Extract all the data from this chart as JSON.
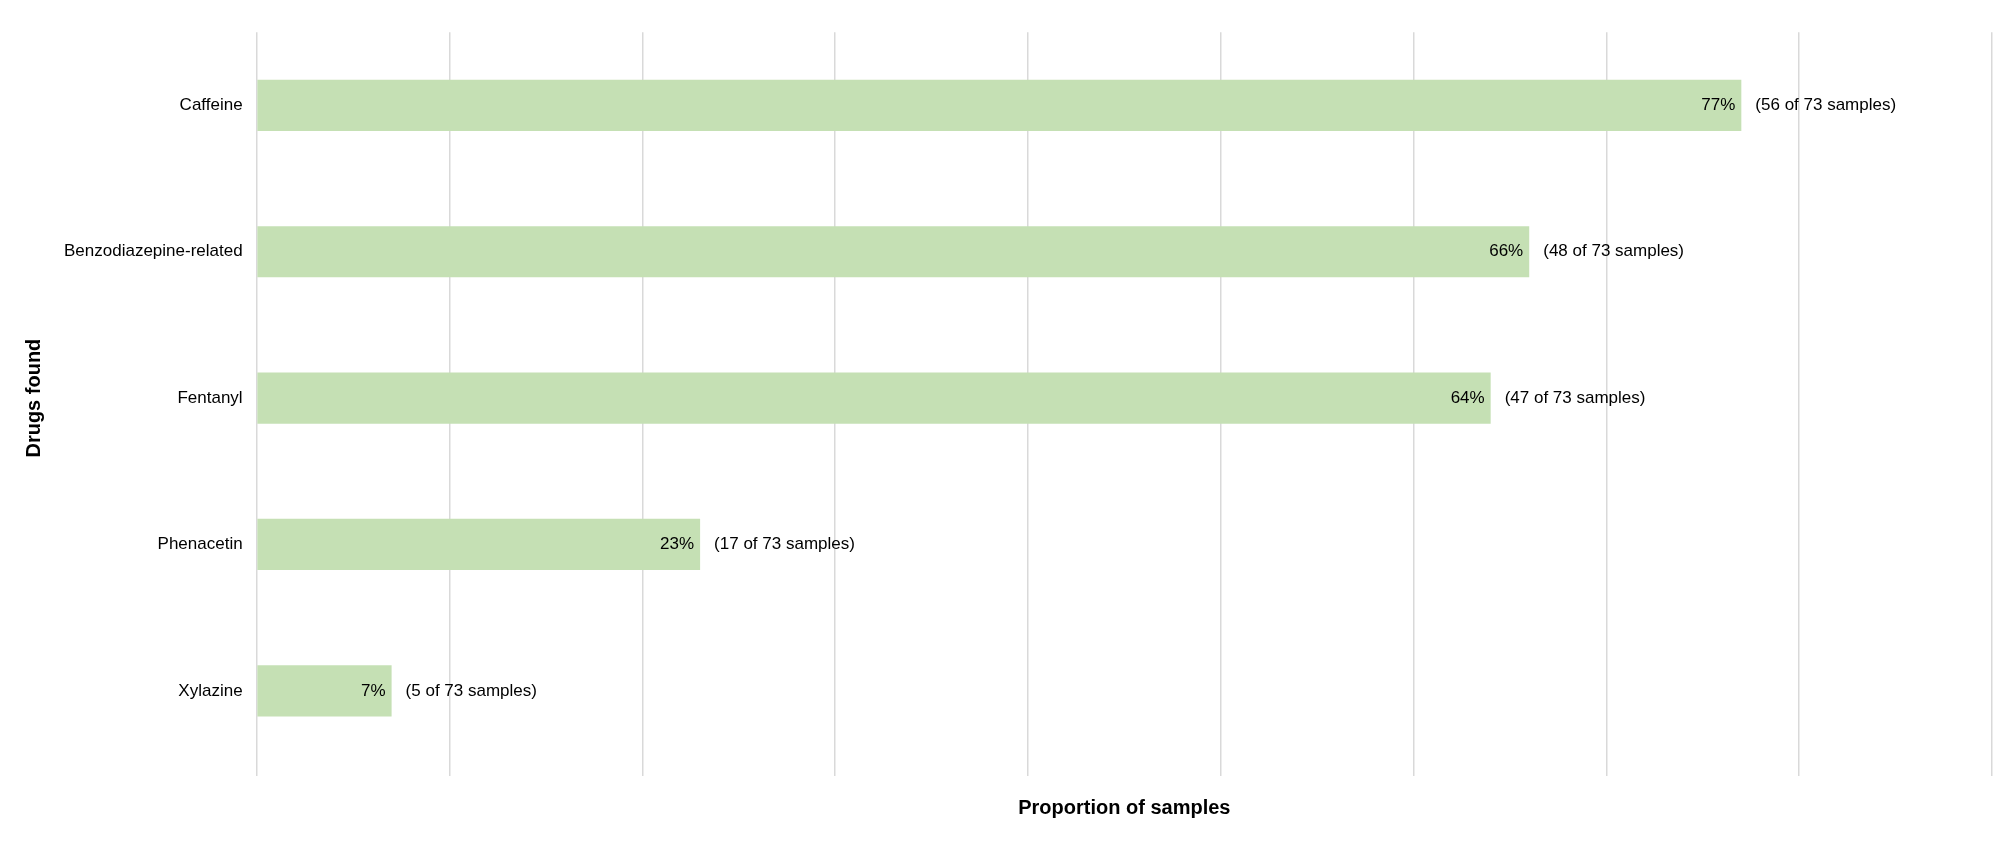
{
  "chart_data": {
    "type": "bar",
    "orientation": "horizontal",
    "xlabel": "Proportion of samples",
    "ylabel": "Drugs found",
    "categories": [
      "Caffeine",
      "Benzodiazepine-related",
      "Fentanyl",
      "Phenacetin",
      "Xylazine"
    ],
    "values": [
      77,
      66,
      64,
      23,
      7
    ],
    "color": "#c5e0b4",
    "value_labels": [
      "77%",
      "66%",
      "64%",
      "23%",
      "7%"
    ],
    "xlim": [
      0,
      90
    ],
    "xticks": [
      {
        "value": 0,
        "label": null
      },
      {
        "value": 10,
        "label": null
      },
      {
        "value": 20,
        "label": null
      },
      {
        "value": 30,
        "label": null
      },
      {
        "value": 40,
        "label": null
      },
      {
        "value": 50,
        "label": null
      },
      {
        "value": 60,
        "label": null
      },
      {
        "value": 70,
        "label": null
      },
      {
        "value": 80,
        "label": null
      },
      {
        "value": 90,
        "label": null
      }
    ],
    "tick_labels": "y",
    "grid": "x",
    "legend": false,
    "annotations": [
      {
        "text": "(56 of 73 samples)",
        "x": 77,
        "y": "Caffeine"
      },
      {
        "text": "(48 of 73 samples)",
        "x": 66,
        "y": "Benzodiazepine-related"
      },
      {
        "text": "(47 of 73 samples)",
        "x": 64,
        "y": "Fentanyl"
      },
      {
        "text": "(17 of 73 samples)",
        "x": 23,
        "y": "Phenacetin"
      },
      {
        "text": "(5 of 73 samples)",
        "x": 7,
        "y": "Xylazine"
      }
    ]
  }
}
